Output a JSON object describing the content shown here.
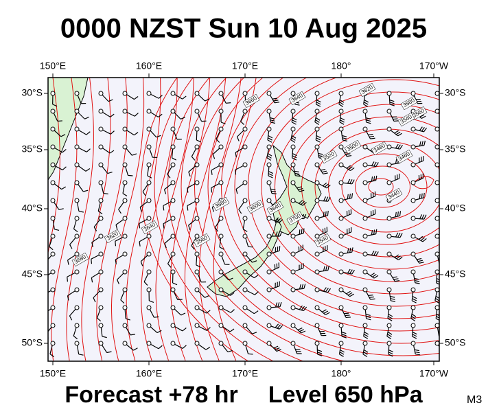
{
  "title": "0000 NZST Sun 10 Aug 2025",
  "footer": {
    "forecast": "Forecast +78 hr",
    "level": "Level 650 hPa",
    "model": "M3"
  },
  "axes": {
    "top": [
      "150°E",
      "160°E",
      "170°E",
      "180°",
      "170°W"
    ],
    "bottom": [
      "150°E",
      "160°E",
      "170°E",
      "180°",
      "170°W"
    ],
    "left": [
      "30°S",
      "35°S",
      "40°S",
      "45°S",
      "50°S"
    ],
    "right": [
      "30°S",
      "35°S",
      "40°S",
      "45°S",
      "50°S"
    ]
  },
  "contour_labels": [
    "3660",
    "3640",
    "3620",
    "3580",
    "3560",
    "3540",
    "3500",
    "3480",
    "3460",
    "3440",
    "3520",
    "3640",
    "3600",
    "3580",
    "3560",
    "3640",
    "3620",
    "3680",
    "3700",
    "3540"
  ]
}
